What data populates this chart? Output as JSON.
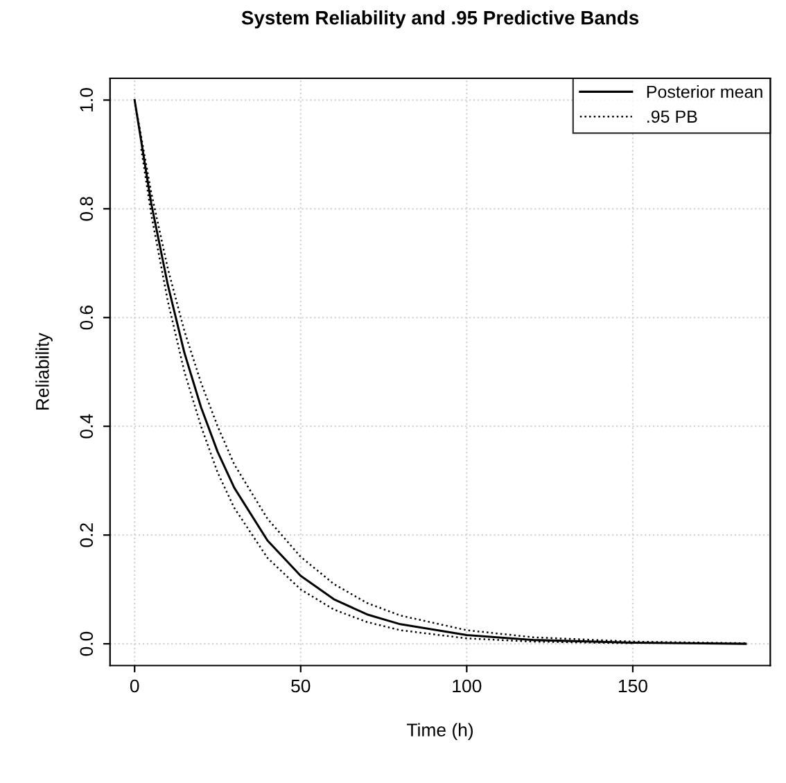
{
  "chart_data": {
    "type": "line",
    "title": "System Reliability and .95 Predictive Bands",
    "xlabel": "Time (h)",
    "ylabel": "Reliability",
    "x": [
      0,
      5,
      10,
      15,
      20,
      25,
      30,
      40,
      50,
      60,
      70,
      80,
      100,
      120,
      150,
      184
    ],
    "series": [
      {
        "name": "Posterior mean",
        "color": "#000000",
        "line_style": "solid",
        "values": [
          1,
          0.81,
          0.66,
          0.535,
          0.435,
          0.353,
          0.287,
          0.19,
          0.125,
          0.082,
          0.054,
          0.036,
          0.016,
          0.007,
          0.002,
          0
        ]
      },
      {
        "name": ".95 PB",
        "color": "#000000",
        "line_style": "dotted",
        "values": [
          1,
          0.83,
          0.69,
          0.575,
          0.48,
          0.4,
          0.33,
          0.23,
          0.16,
          0.11,
          0.075,
          0.052,
          0.025,
          0.012,
          0.004,
          0.001
        ]
      },
      {
        "color": "#000000",
        "line_style": "dotted",
        "x": [
          2,
          5,
          10,
          15,
          20,
          25,
          30,
          40,
          50,
          60,
          70,
          80,
          100,
          120,
          150
        ],
        "values": [
          0.91,
          0.79,
          0.63,
          0.5,
          0.4,
          0.315,
          0.25,
          0.158,
          0.1,
          0.063,
          0.04,
          0.025,
          0.01,
          0.004,
          0.001
        ]
      }
    ],
    "xlim": [
      -7.4,
      191.4
    ],
    "ylim": [
      -0.04,
      1.04
    ],
    "xticks": [
      0,
      50,
      100,
      150
    ],
    "yticks": [
      {
        "value": 0,
        "label": "0.0"
      },
      {
        "value": 0.2,
        "label": "0.2"
      },
      {
        "value": 0.4,
        "label": "0.4"
      },
      {
        "value": 0.6,
        "label": "0.6"
      },
      {
        "value": 0.8,
        "label": "0.8"
      },
      {
        "value": 1,
        "label": "1.0"
      }
    ],
    "grid": true,
    "legend": "top right",
    "marker": "none"
  }
}
